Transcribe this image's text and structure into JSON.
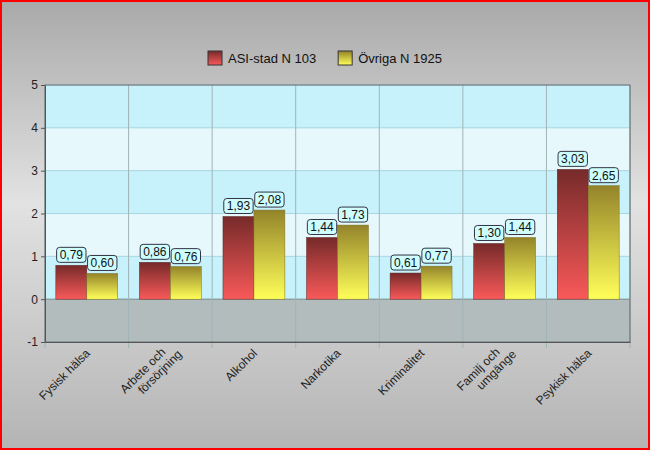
{
  "chart_data": {
    "type": "bar",
    "categories": [
      "Fysisk hälsa",
      "Arbete och försörjning",
      "Alkohol",
      "Narkotika",
      "Kriminalitet",
      "Familj och umgänge",
      "Psykisk hälsa"
    ],
    "series": [
      {
        "name": "ASI-stad N 103",
        "color": "#a83c3c",
        "values": [
          0.79,
          0.86,
          1.93,
          1.44,
          0.61,
          1.3,
          3.03
        ],
        "value_labels": [
          "0,79",
          "0,86",
          "1,93",
          "1,44",
          "0,61",
          "1,30",
          "3,03"
        ]
      },
      {
        "name": "Övriga N 1925",
        "color": "#d4bc3c",
        "values": [
          0.6,
          0.76,
          2.08,
          1.73,
          0.77,
          1.44,
          2.65
        ],
        "value_labels": [
          "0,60",
          "0,76",
          "2,08",
          "1,73",
          "0,77",
          "1,44",
          "2,65"
        ]
      }
    ],
    "ylim": [
      -1,
      5
    ],
    "yticks": [
      -1,
      0,
      1,
      2,
      3,
      4,
      5
    ],
    "grid": true,
    "legend": "top",
    "data_labels": true
  }
}
